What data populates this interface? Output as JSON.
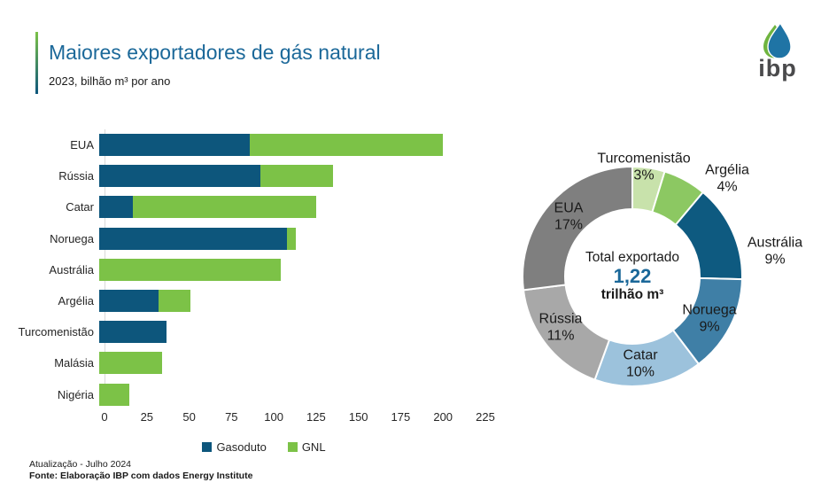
{
  "header": {
    "title": "Maiores exportadores de gás natural",
    "subtitle": "2023, bilhão m³ por ano"
  },
  "logo": {
    "text": "ibp"
  },
  "colors": {
    "title_blue": "#1b6899",
    "gasoduto_blue": "#0d567c",
    "gnl_green": "#7cc247",
    "accent_gradient_top": "#7cc247",
    "accent_gradient_bottom": "#0d567c"
  },
  "chart_data": [
    {
      "type": "bar",
      "orientation": "horizontal",
      "title": "Maiores exportadores de gás natural",
      "unit": "bilhão m³ por ano",
      "categories": [
        "EUA",
        "Rússia",
        "Catar",
        "Noruega",
        "Austrália",
        "Argélia",
        "Turcomenistão",
        "Malásia",
        "Nigéria"
      ],
      "series": [
        {
          "name": "Gasoduto",
          "color": "#0d567c",
          "values": [
            89,
            95,
            20,
            111,
            0,
            35,
            40,
            0,
            0
          ]
        },
        {
          "name": "GNL",
          "color": "#7cc247",
          "values": [
            114,
            43,
            108,
            5,
            107,
            19,
            0,
            37,
            18
          ]
        }
      ],
      "xlim": [
        0,
        225
      ],
      "xticks": [
        0,
        25,
        50,
        75,
        100,
        125,
        150,
        175,
        200,
        225
      ],
      "grid": false,
      "legend_position": "bottom"
    },
    {
      "type": "pie",
      "donut": true,
      "center_label": "Total exportado",
      "center_value": "1,22",
      "center_unit": "trilhão m³",
      "segments": [
        {
          "label": "Turcomenistão",
          "pct": "3%",
          "value": 3,
          "color": "#c8e2ab"
        },
        {
          "label": "Argélia",
          "pct": "4%",
          "value": 4,
          "color": "#8cc862"
        },
        {
          "label": "Austrália",
          "pct": "9%",
          "value": 9,
          "color": "#0e5a80"
        },
        {
          "label": "Noruega",
          "pct": "9%",
          "value": 9,
          "color": "#3f7fa6"
        },
        {
          "label": "Catar",
          "pct": "10%",
          "value": 10,
          "color": "#9cc2dc"
        },
        {
          "label": "Rússia",
          "pct": "11%",
          "value": 11,
          "color": "#a8a8a8"
        },
        {
          "label": "EUA",
          "pct": "17%",
          "value": 17,
          "color": "#7f7f7f"
        }
      ]
    }
  ],
  "footer": {
    "line1": "Atualização - Julho 2024",
    "line2": "Fonte: Elaboração IBP com dados Energy Institute"
  }
}
